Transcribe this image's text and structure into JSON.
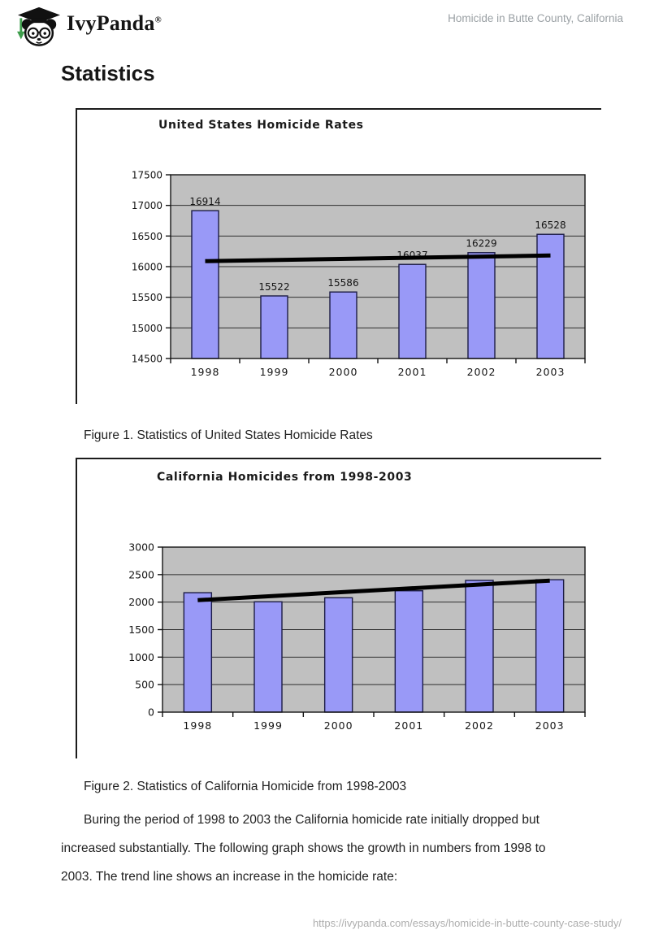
{
  "header": {
    "brand": "IvyPanda",
    "registered": "®",
    "page_title": "Homicide in Butte County, California"
  },
  "heading": "Statistics",
  "figures": [
    {
      "caption": "Figure 1. Statistics of United States Homicide Rates"
    },
    {
      "caption": "Figure 2. Statistics of California Homicide from 1998-2003"
    }
  ],
  "paragraph": {
    "lines": [
      "Buring the period of 1998 to 2003 the California homicide rate initially dropped but",
      "increased substantially. The following graph shows the growth in numbers from 1998 to",
      "2003. The trend line shows an increase in the homicide rate:"
    ]
  },
  "footer": {
    "url": "https://ivypanda.com/essays/homicide-in-butte-county-case-study/"
  },
  "chart_data": [
    {
      "type": "bar",
      "title": "United States Homicide Rates",
      "categories": [
        "1998",
        "1999",
        "2000",
        "2001",
        "2002",
        "2003"
      ],
      "values": [
        16914,
        15522,
        15586,
        16037,
        16229,
        16528
      ],
      "value_labels_shown": true,
      "xlabel": "",
      "ylabel": "",
      "ylim": [
        14500,
        17500
      ],
      "ytick_step": 500,
      "grid": true,
      "legend": "none",
      "trendline": {
        "type": "linear",
        "start": 16090,
        "end": 16182
      },
      "colors": {
        "bar_fill": "#9999f7",
        "bar_border": "#1c1c45",
        "plot_bg": "#c0c0c0",
        "gridline": "#2e2e2e",
        "trend": "#000000"
      }
    },
    {
      "type": "bar",
      "title": "California Homicides from 1998-2003",
      "categories": [
        "1998",
        "1999",
        "2000",
        "2001",
        "2002",
        "2003"
      ],
      "values": [
        2171,
        2006,
        2079,
        2206,
        2395,
        2407
      ],
      "value_labels_shown": false,
      "xlabel": "",
      "ylabel": "",
      "ylim": [
        0,
        3000
      ],
      "ytick_step": 500,
      "grid": true,
      "legend": "none",
      "trendline": {
        "type": "linear",
        "start": 2035,
        "end": 2391
      },
      "colors": {
        "bar_fill": "#9999f7",
        "bar_border": "#1c1c45",
        "plot_bg": "#c0c0c0",
        "gridline": "#2e2e2e",
        "trend": "#000000"
      }
    }
  ]
}
